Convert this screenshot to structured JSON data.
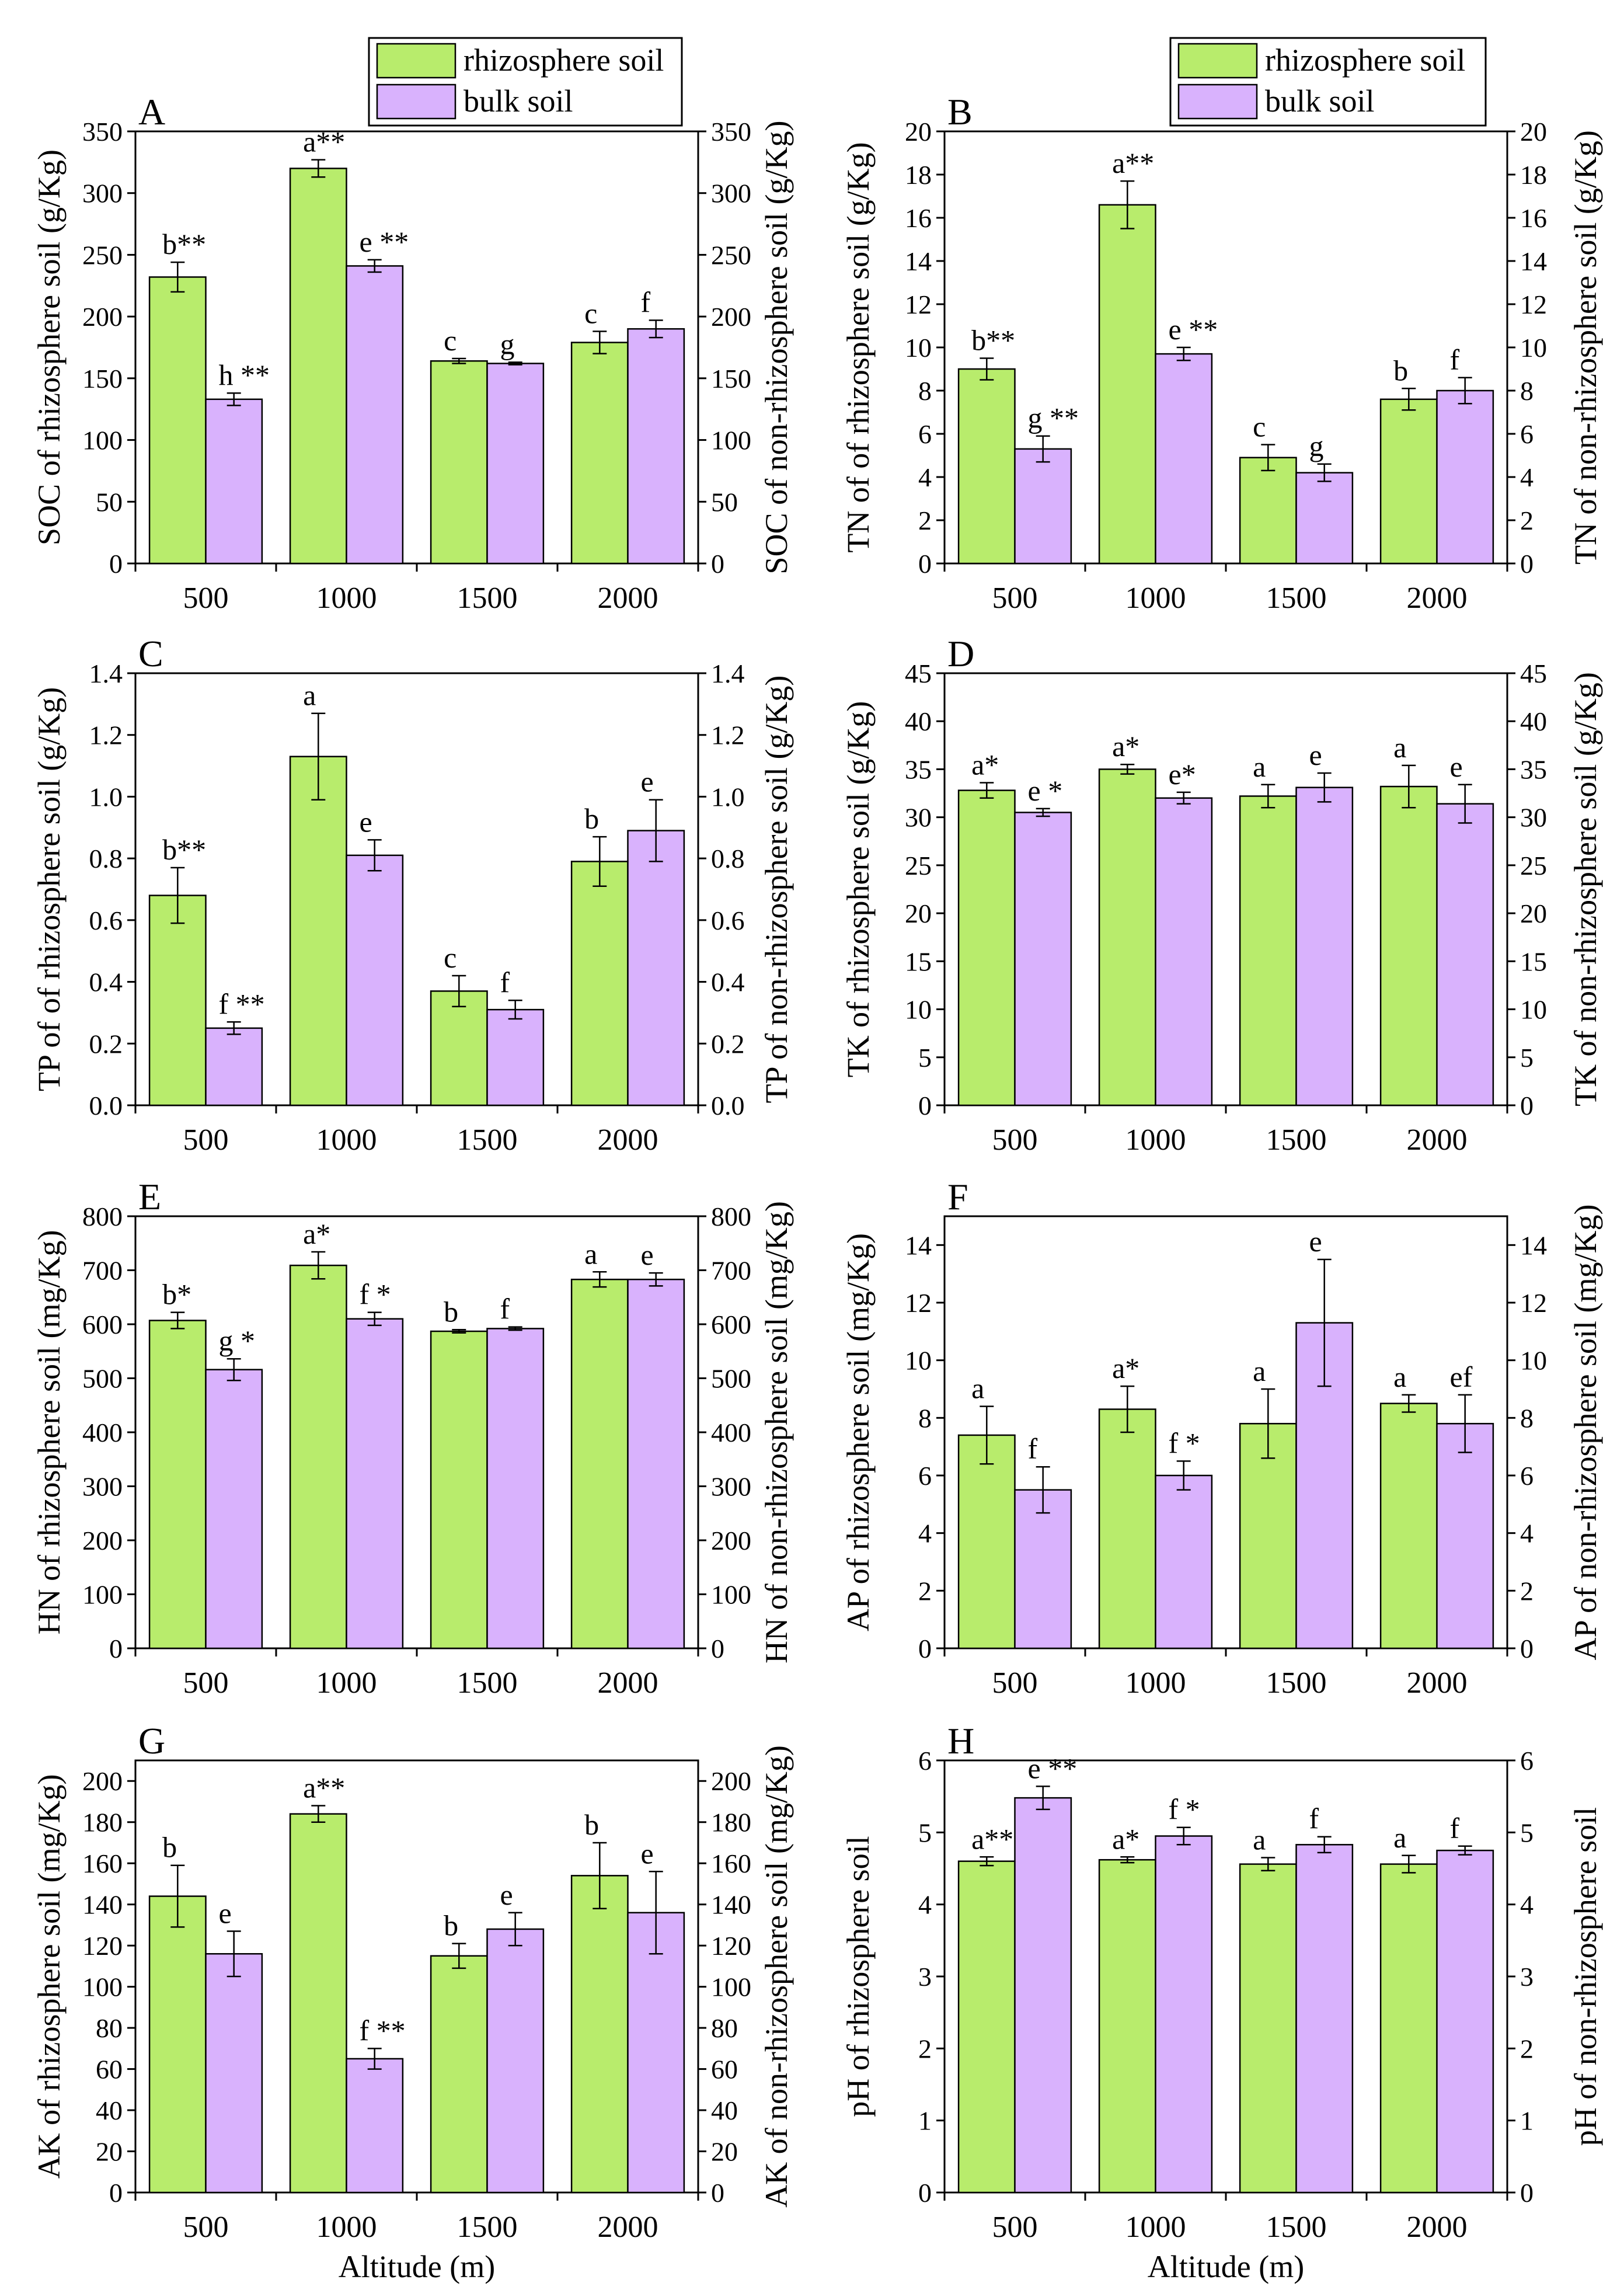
{
  "colors": {
    "rhizosphere": "#b8ec6c",
    "bulk": "#d9b2fd"
  },
  "legend": {
    "rhizosphere": "rhizosphere soil",
    "bulk": "bulk soil"
  },
  "chart_data": [
    {
      "type": "bar",
      "panel": "A",
      "ylabel": "SOC of rhizosphere soil  (g/Kg)",
      "ylabel_right": "SOC of non-rhizosphere soil  (g/Kg)",
      "ylim": [
        0,
        350
      ],
      "yticks": [
        0,
        50,
        100,
        150,
        200,
        250,
        300,
        350
      ],
      "tick_labels": [
        "0",
        "50",
        "100",
        "150",
        "200",
        "250",
        "300",
        "350"
      ],
      "categories": [
        "500",
        "1000",
        "1500",
        "2000"
      ],
      "xlabel": "",
      "series": [
        {
          "name": "rhizosphere soil",
          "values": [
            232,
            320,
            164,
            179
          ],
          "errors": [
            12,
            7,
            2,
            9
          ],
          "labels": [
            "b**",
            "a**",
            "c",
            "c"
          ]
        },
        {
          "name": "bulk soil",
          "values": [
            133,
            241,
            162,
            190
          ],
          "errors": [
            5,
            5,
            1,
            7
          ],
          "labels": [
            "h **",
            "e **",
            "g",
            "f"
          ]
        }
      ]
    },
    {
      "type": "bar",
      "panel": "B",
      "ylabel": "TN of of rhizosphere soil (g/Kg)",
      "ylabel_right": "TN of non-rhizosphere soil (g/Kg)",
      "ylim": [
        0,
        20
      ],
      "yticks": [
        0,
        2,
        4,
        6,
        8,
        10,
        12,
        14,
        16,
        18,
        20
      ],
      "tick_labels": [
        "0",
        "2",
        "4",
        "6",
        "8",
        "10",
        "12",
        "14",
        "16",
        "18",
        "20"
      ],
      "categories": [
        "500",
        "1000",
        "1500",
        "2000"
      ],
      "xlabel": "",
      "series": [
        {
          "name": "rhizosphere soil",
          "values": [
            9.0,
            16.6,
            4.9,
            7.6
          ],
          "errors": [
            0.5,
            1.1,
            0.6,
            0.5
          ],
          "labels": [
            "b**",
            "a**",
            "c",
            "b"
          ]
        },
        {
          "name": "bulk soil",
          "values": [
            5.3,
            9.7,
            4.2,
            8.0
          ],
          "errors": [
            0.6,
            0.3,
            0.4,
            0.6
          ],
          "labels": [
            "g **",
            "e **",
            "g",
            "f"
          ]
        }
      ]
    },
    {
      "type": "bar",
      "panel": "C",
      "ylabel": "TP of of rhizosphere soil  (g/Kg)",
      "ylabel_right": "TP of non-rhizosphere soil  (g/Kg)",
      "ylim": [
        0,
        1.4
      ],
      "yticks": [
        0,
        0.2,
        0.4,
        0.6,
        0.8,
        1.0,
        1.2,
        1.4
      ],
      "tick_labels": [
        "0.0",
        "0.2",
        "0.4",
        "0.6",
        "0.8",
        "1.0",
        "1.2",
        "1.4"
      ],
      "categories": [
        "500",
        "1000",
        "1500",
        "2000"
      ],
      "xlabel": "",
      "series": [
        {
          "name": "rhizosphere soil",
          "values": [
            0.68,
            1.13,
            0.37,
            0.79
          ],
          "errors": [
            0.09,
            0.14,
            0.05,
            0.08
          ],
          "labels": [
            "b**",
            "a",
            "c",
            "b"
          ]
        },
        {
          "name": "bulk soil",
          "values": [
            0.25,
            0.81,
            0.31,
            0.89
          ],
          "errors": [
            0.02,
            0.05,
            0.03,
            0.1
          ],
          "labels": [
            "f **",
            "e",
            "f",
            "e"
          ]
        }
      ]
    },
    {
      "type": "bar",
      "panel": "D",
      "ylabel": "TK of rhizosphere soil (g/Kg)",
      "ylabel_right": "TK of non-rhizosphere soil (g/Kg)",
      "ylim": [
        0,
        45
      ],
      "yticks": [
        0,
        5,
        10,
        15,
        20,
        25,
        30,
        35,
        40,
        45
      ],
      "tick_labels": [
        "0",
        "5",
        "10",
        "15",
        "20",
        "25",
        "30",
        "35",
        "40",
        "45"
      ],
      "categories": [
        "500",
        "1000",
        "1500",
        "2000"
      ],
      "xlabel": "",
      "series": [
        {
          "name": "rhizosphere soil",
          "values": [
            32.8,
            35.0,
            32.2,
            33.2
          ],
          "errors": [
            0.8,
            0.5,
            1.2,
            2.2
          ],
          "labels": [
            "a*",
            "a*",
            "a",
            "a"
          ]
        },
        {
          "name": "bulk soil",
          "values": [
            30.5,
            32.0,
            33.1,
            31.4
          ],
          "errors": [
            0.4,
            0.6,
            1.5,
            2.0
          ],
          "labels": [
            "e *",
            "e*",
            "e",
            "e"
          ]
        }
      ]
    },
    {
      "type": "bar",
      "panel": "E",
      "ylabel": "HN of rhizosphere soil  (mg/Kg)",
      "ylabel_right": "HN of non-rhizosphere soil  (mg/Kg)",
      "ylim": [
        0,
        800
      ],
      "yticks": [
        0,
        100,
        200,
        300,
        400,
        500,
        600,
        700,
        800
      ],
      "tick_labels": [
        "0",
        "100",
        "200",
        "300",
        "400",
        "500",
        "600",
        "700",
        "800"
      ],
      "categories": [
        "500",
        "1000",
        "1500",
        "2000"
      ],
      "xlabel": "",
      "series": [
        {
          "name": "rhizosphere soil",
          "values": [
            607,
            709,
            587,
            683
          ],
          "errors": [
            15,
            25,
            3,
            14
          ],
          "labels": [
            "b*",
            "a*",
            "b",
            "a"
          ]
        },
        {
          "name": "bulk soil",
          "values": [
            516,
            610,
            592,
            683
          ],
          "errors": [
            20,
            12,
            3,
            12
          ],
          "labels": [
            "g *",
            "f *",
            "f",
            "e"
          ]
        }
      ]
    },
    {
      "type": "bar",
      "panel": "F",
      "ylabel": "AP of rhizosphere soil  (mg/Kg)",
      "ylabel_right": "AP of non-rhizosphere soil  (mg/Kg)",
      "ylim": [
        0,
        15
      ],
      "yticks": [
        0,
        2,
        4,
        6,
        8,
        10,
        12,
        14
      ],
      "tick_labels": [
        "0",
        "2",
        "4",
        "6",
        "8",
        "10",
        "12",
        "14"
      ],
      "categories": [
        "500",
        "1000",
        "1500",
        "2000"
      ],
      "xlabel": "",
      "series": [
        {
          "name": "rhizosphere soil",
          "values": [
            7.4,
            8.3,
            7.8,
            8.5
          ],
          "errors": [
            1.0,
            0.8,
            1.2,
            0.3
          ],
          "labels": [
            "a",
            "a*",
            "a",
            "a"
          ]
        },
        {
          "name": "bulk soil",
          "values": [
            5.5,
            6.0,
            11.3,
            7.8
          ],
          "errors": [
            0.8,
            0.5,
            2.2,
            1.0
          ],
          "labels": [
            "f",
            "f *",
            "e",
            "ef"
          ]
        }
      ]
    },
    {
      "type": "bar",
      "panel": "G",
      "ylabel": "AK of rhizosphere soil (mg/Kg)",
      "ylabel_right": "AK of non-rhizosphere soil (mg/Kg)",
      "ylim": [
        0,
        210
      ],
      "yticks": [
        0,
        20,
        40,
        60,
        80,
        100,
        120,
        140,
        160,
        180,
        200
      ],
      "tick_labels": [
        "0",
        "20",
        "40",
        "60",
        "80",
        "100",
        "120",
        "140",
        "160",
        "180",
        "200"
      ],
      "categories": [
        "500",
        "1000",
        "1500",
        "2000"
      ],
      "xlabel": "Altitude (m)",
      "series": [
        {
          "name": "rhizosphere soil",
          "values": [
            144,
            184,
            115,
            154
          ],
          "errors": [
            15,
            4,
            6,
            16
          ],
          "labels": [
            "b",
            "a**",
            "b",
            "b"
          ]
        },
        {
          "name": "bulk soil",
          "values": [
            116,
            65,
            128,
            136
          ],
          "errors": [
            11,
            5,
            8,
            20
          ],
          "labels": [
            "e",
            "f **",
            "e",
            "e"
          ]
        }
      ]
    },
    {
      "type": "bar",
      "panel": "H",
      "ylabel": "pH of rhizosphere soil",
      "ylabel_right": "pH of non-rhizosphere soil",
      "ylim": [
        0,
        6
      ],
      "yticks": [
        0,
        1,
        2,
        3,
        4,
        5,
        6
      ],
      "tick_labels": [
        "0",
        "1",
        "2",
        "3",
        "4",
        "5",
        "6"
      ],
      "categories": [
        "500",
        "1000",
        "1500",
        "2000"
      ],
      "xlabel": "Altitude (m)",
      "series": [
        {
          "name": "rhizosphere soil",
          "values": [
            4.6,
            4.62,
            4.56,
            4.56
          ],
          "errors": [
            0.06,
            0.04,
            0.09,
            0.12
          ],
          "labels": [
            "a**",
            "a*",
            "a",
            "a"
          ]
        },
        {
          "name": "bulk soil",
          "values": [
            5.48,
            4.95,
            4.83,
            4.75
          ],
          "errors": [
            0.16,
            0.12,
            0.11,
            0.06
          ],
          "labels": [
            "e **",
            "f *",
            "f",
            "f"
          ]
        }
      ]
    }
  ]
}
